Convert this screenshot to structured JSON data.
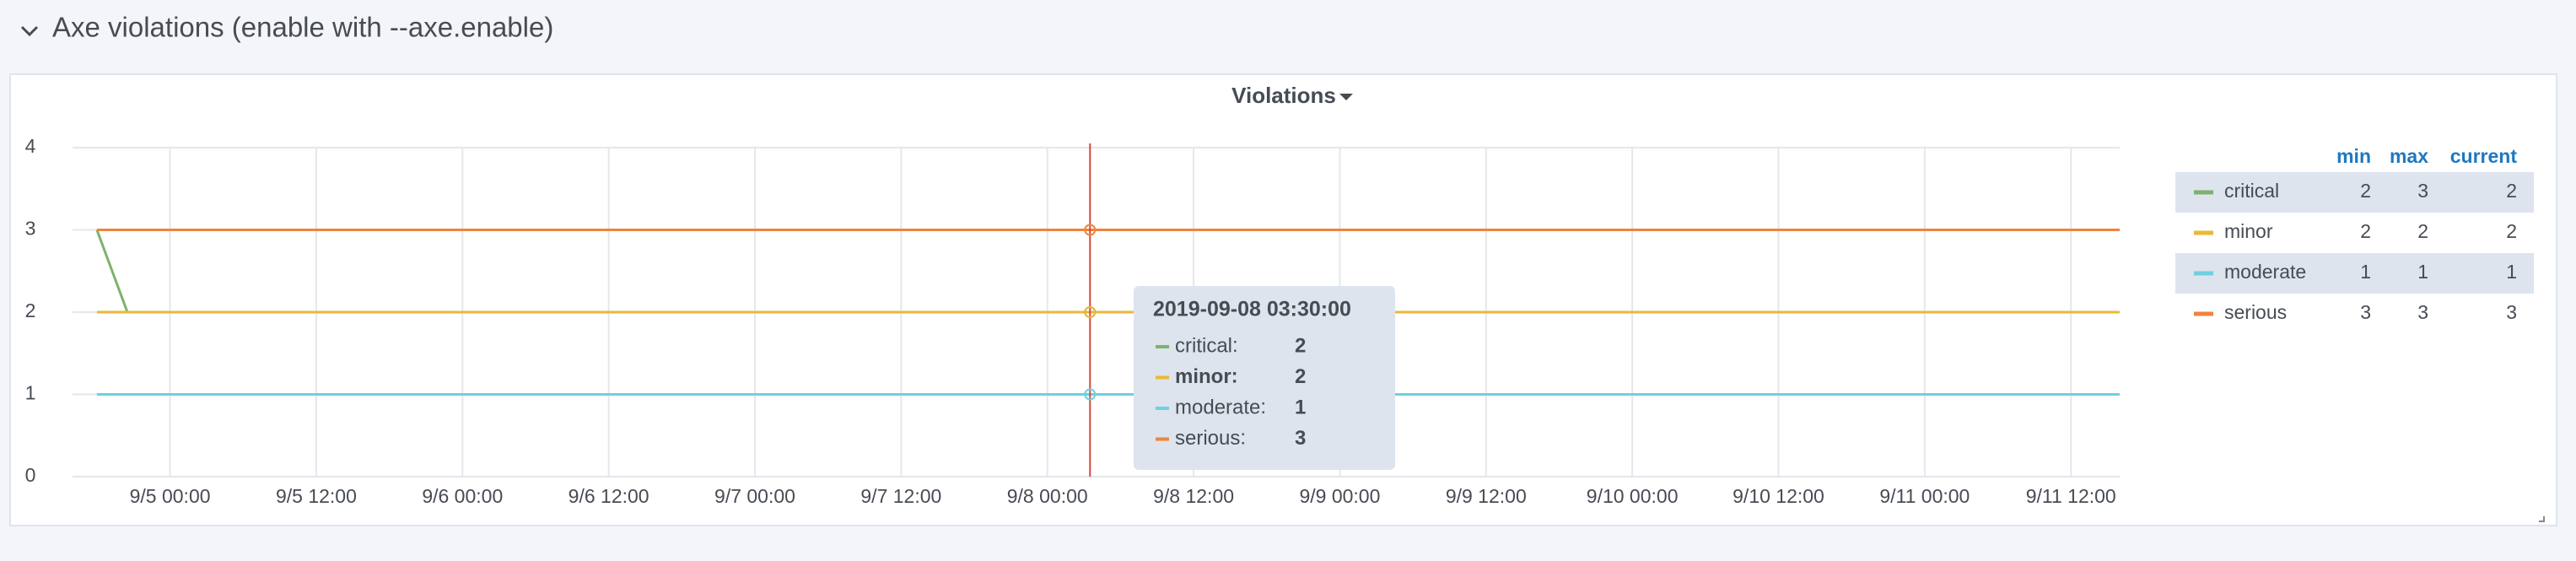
{
  "header": {
    "title": "Axe violations (enable with --axe.enable)"
  },
  "chart_data": {
    "type": "line",
    "title": "Violations",
    "x": [
      "2019-09-04 18:00",
      "2019-09-04 20:30",
      "2019-09-08 03:30",
      "2019-09-11 16:00"
    ],
    "series": [
      {
        "name": "critical",
        "color": "#7eb26d",
        "values": [
          3,
          2,
          2,
          2
        ]
      },
      {
        "name": "minor",
        "color": "#eab839",
        "values": [
          2,
          2,
          2,
          2
        ]
      },
      {
        "name": "moderate",
        "color": "#6ed0e0",
        "values": [
          1,
          1,
          1,
          1
        ]
      },
      {
        "name": "serious",
        "color": "#ef843c",
        "values": [
          3,
          3,
          3,
          3
        ]
      }
    ],
    "xlim": [
      "2019-09-04 16:00",
      "2019-09-11 16:00"
    ],
    "xticks": [
      {
        "value": "2019-09-05 00:00",
        "label": "9/5 00:00"
      },
      {
        "value": "2019-09-05 12:00",
        "label": "9/5 12:00"
      },
      {
        "value": "2019-09-06 00:00",
        "label": "9/6 00:00"
      },
      {
        "value": "2019-09-06 12:00",
        "label": "9/6 12:00"
      },
      {
        "value": "2019-09-07 00:00",
        "label": "9/7 00:00"
      },
      {
        "value": "2019-09-07 12:00",
        "label": "9/7 12:00"
      },
      {
        "value": "2019-09-08 00:00",
        "label": "9/8 00:00"
      },
      {
        "value": "2019-09-08 12:00",
        "label": "9/8 12:00"
      },
      {
        "value": "2019-09-09 00:00",
        "label": "9/9 00:00"
      },
      {
        "value": "2019-09-09 12:00",
        "label": "9/9 12:00"
      },
      {
        "value": "2019-09-10 00:00",
        "label": "9/10 00:00"
      },
      {
        "value": "2019-09-10 12:00",
        "label": "9/10 12:00"
      },
      {
        "value": "2019-09-11 00:00",
        "label": "9/11 00:00"
      },
      {
        "value": "2019-09-11 12:00",
        "label": "9/11 12:00"
      }
    ],
    "ylim": [
      0,
      4
    ],
    "yticks": [
      0,
      1,
      2,
      3,
      4
    ],
    "grid": true,
    "tooltip": {
      "title": "2019-09-08 03:30:00",
      "highlight": "minor"
    },
    "legend": {
      "columns": [
        "min",
        "max",
        "current"
      ],
      "rows": [
        [
          2,
          3,
          2
        ],
        [
          2,
          2,
          2
        ],
        [
          1,
          1,
          1
        ],
        [
          3,
          3,
          3
        ]
      ]
    }
  }
}
